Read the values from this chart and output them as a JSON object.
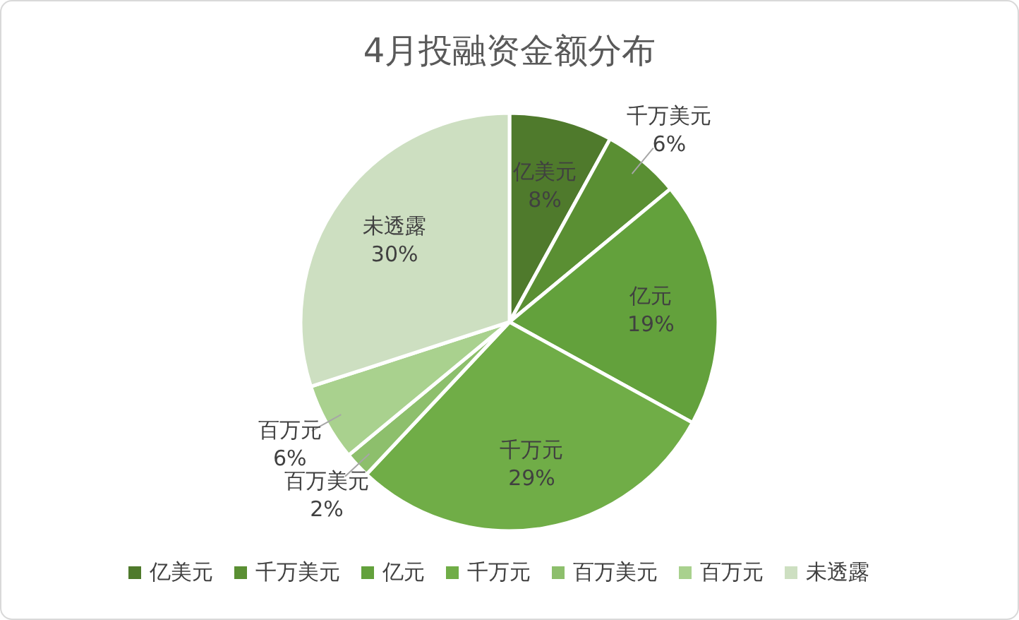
{
  "chart_data": {
    "type": "pie",
    "title": "4月投融资金额分布",
    "categories": [
      "亿美元",
      "千万美元",
      "亿元",
      "千万元",
      "百万美元",
      "百万元",
      "未透露"
    ],
    "values": [
      8,
      6,
      19,
      29,
      2,
      6,
      30
    ],
    "colors": [
      "#4f7a2c",
      "#5a8f33",
      "#63a13c",
      "#70ad47",
      "#8dbf6c",
      "#a9d18e",
      "#cddfc1"
    ],
    "value_labels": [
      "8%",
      "6%",
      "19%",
      "29%",
      "2%",
      "6%",
      "30%"
    ],
    "legend": "bottom"
  }
}
